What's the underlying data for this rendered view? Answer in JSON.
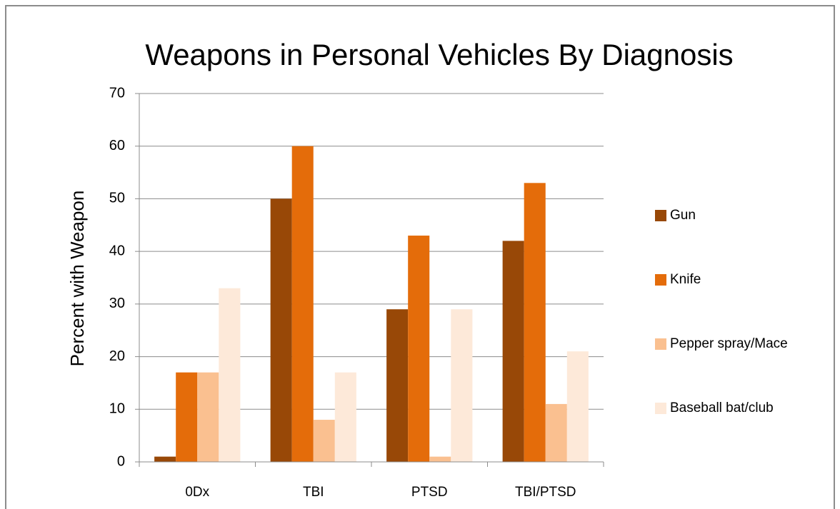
{
  "chart_data": {
    "type": "bar",
    "title": "Weapons in Personal Vehicles By Diagnosis",
    "y_label": "Percent with Weapon",
    "categories": [
      "0Dx",
      "TBI",
      "PTSD",
      "TBI/PTSD"
    ],
    "series": [
      {
        "name": "Gun",
        "color": "#984807",
        "values": [
          1,
          50,
          29,
          42
        ]
      },
      {
        "name": "Knife",
        "color": "#e46c0a",
        "values": [
          17,
          60,
          43,
          53
        ]
      },
      {
        "name": "Pepper spray/Mace",
        "color": "#fac090",
        "values": [
          17,
          8,
          1,
          11
        ]
      },
      {
        "name": "Baseball bat/club",
        "color": "#fde9d9",
        "values": [
          33,
          17,
          29,
          21
        ]
      }
    ],
    "ylim": [
      0,
      70
    ],
    "yticks": [
      0,
      10,
      20,
      30,
      40,
      50,
      60,
      70
    ],
    "grid": true,
    "legend": "right"
  }
}
